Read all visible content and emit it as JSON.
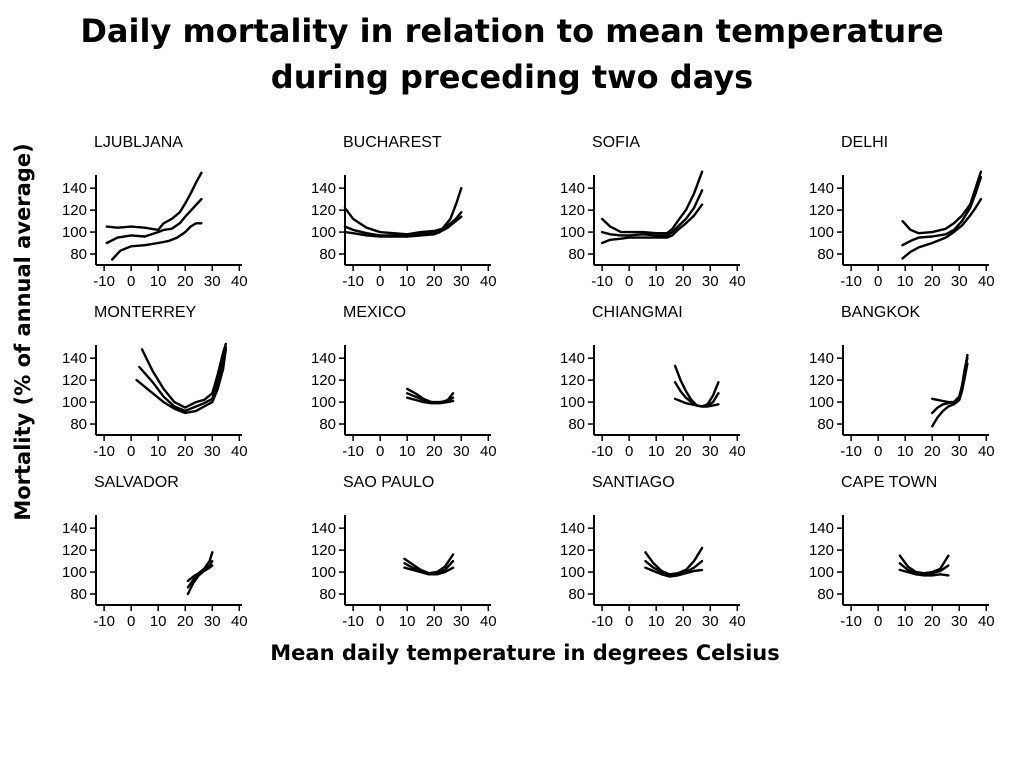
{
  "title": {
    "line1": "Daily mortality in relation to mean temperature",
    "line2": "during preceding two days"
  },
  "chart_data": {
    "type": "line",
    "title": "Daily mortality in relation to mean temperature during preceding two days",
    "xlabel": "Mean daily temperature in degrees Celsius",
    "ylabel": "Mortality (% of annual average)",
    "layout": "3x4 small multiples",
    "xlim": [
      -13,
      41
    ],
    "ylim": [
      70,
      152
    ],
    "x_ticks": [
      -10,
      0,
      10,
      20,
      30,
      40
    ],
    "y_ticks": [
      80,
      100,
      120,
      140
    ],
    "grid": false,
    "panels": [
      {
        "name": "LJUBLJANA",
        "series": [
          {
            "x": [
              -9,
              -5,
              0,
              5,
              10,
              12,
              15,
              18,
              20,
              23,
              26
            ],
            "y": [
              90,
              95,
              97,
              96,
              100,
              102,
              103,
              108,
              114,
              122,
              130
            ]
          },
          {
            "x": [
              -9,
              -5,
              0,
              5,
              10,
              12,
              15,
              18,
              20,
              22,
              24,
              26
            ],
            "y": [
              105,
              104,
              105,
              104,
              102,
              108,
              112,
              118,
              126,
              135,
              145,
              154
            ]
          },
          {
            "x": [
              -7,
              -4,
              0,
              5,
              10,
              14,
              17,
              20,
              22,
              24,
              26
            ],
            "y": [
              75,
              83,
              87,
              88,
              90,
              92,
              95,
              100,
              105,
              108,
              108
            ]
          }
        ]
      },
      {
        "name": "BUCHAREST",
        "series": [
          {
            "x": [
              -13,
              -10,
              -5,
              0,
              5,
              10,
              15,
              20,
              23,
              26,
              28,
              30
            ],
            "y": [
              122,
              112,
              104,
              100,
              99,
              98,
              100,
              101,
              103,
              112,
              125,
              140
            ]
          },
          {
            "x": [
              -13,
              -10,
              -5,
              0,
              5,
              10,
              15,
              20,
              22,
              25,
              28,
              30
            ],
            "y": [
              105,
              102,
              99,
              97,
              97,
              96,
              98,
              99,
              100,
              106,
              112,
              118
            ]
          },
          {
            "x": [
              -13,
              -10,
              -5,
              0,
              5,
              10,
              15,
              20,
              22,
              25,
              28,
              30
            ],
            "y": [
              100,
              99,
              97,
              96,
              96,
              96,
              97,
              98,
              100,
              104,
              110,
              114
            ]
          }
        ]
      },
      {
        "name": "SOFIA",
        "series": [
          {
            "x": [
              -10,
              -7,
              -3,
              0,
              5,
              10,
              14,
              16,
              18,
              21,
              24,
              27
            ],
            "y": [
              112,
              105,
              100,
              100,
              100,
              99,
              99,
              103,
              110,
              120,
              135,
              155
            ]
          },
          {
            "x": [
              -10,
              -7,
              -3,
              0,
              5,
              10,
              14,
              16,
              18,
              21,
              24,
              27
            ],
            "y": [
              100,
              98,
              97,
              97,
              98,
              97,
              97,
              100,
              105,
              112,
              122,
              138
            ]
          },
          {
            "x": [
              -10,
              -7,
              -3,
              0,
              5,
              10,
              14,
              16,
              18,
              21,
              24,
              27
            ],
            "y": [
              90,
              93,
              94,
              95,
              95,
              95,
              95,
              97,
              102,
              108,
              115,
              125
            ]
          }
        ]
      },
      {
        "name": "DELHI",
        "series": [
          {
            "x": [
              9,
              12,
              15,
              20,
              25,
              28,
              31,
              34,
              36,
              38
            ],
            "y": [
              110,
              102,
              99,
              100,
              103,
              108,
              115,
              125,
              140,
              155
            ]
          },
          {
            "x": [
              9,
              12,
              15,
              20,
              25,
              28,
              31,
              34,
              36,
              38
            ],
            "y": [
              88,
              92,
              95,
              96,
              98,
              102,
              110,
              122,
              135,
              150
            ]
          },
          {
            "x": [
              9,
              12,
              15,
              20,
              25,
              28,
              31,
              34,
              36,
              38
            ],
            "y": [
              76,
              82,
              86,
              90,
              95,
              100,
              106,
              115,
              122,
              130
            ]
          }
        ]
      },
      {
        "name": "MONTERREY",
        "series": [
          {
            "x": [
              4,
              8,
              12,
              16,
              20,
              24,
              27,
              30,
              32,
              34,
              35
            ],
            "y": [
              148,
              128,
              112,
              100,
              95,
              100,
              102,
              108,
              125,
              145,
              153
            ]
          },
          {
            "x": [
              3,
              8,
              12,
              16,
              20,
              24,
              27,
              30,
              32,
              34,
              35
            ],
            "y": [
              132,
              118,
              105,
              96,
              92,
              96,
              99,
              103,
              118,
              138,
              150
            ]
          },
          {
            "x": [
              2,
              8,
              12,
              16,
              20,
              24,
              27,
              30,
              32,
              34,
              35
            ],
            "y": [
              120,
              108,
              100,
              94,
              90,
              92,
              96,
              100,
              112,
              130,
              148
            ]
          }
        ]
      },
      {
        "name": "MEXICO",
        "series": [
          {
            "x": [
              10,
              13,
              16,
              19,
              22,
              25,
              27
            ],
            "y": [
              112,
              108,
              103,
              100,
              99,
              102,
              108
            ]
          },
          {
            "x": [
              10,
              13,
              16,
              19,
              22,
              25,
              27
            ],
            "y": [
              108,
              105,
              102,
              100,
              100,
              101,
              104
            ]
          },
          {
            "x": [
              10,
              13,
              16,
              19,
              22,
              25,
              27
            ],
            "y": [
              104,
              102,
              100,
              99,
              99,
              100,
              101
            ]
          }
        ]
      },
      {
        "name": "CHIANGMAI",
        "series": [
          {
            "x": [
              17,
              19,
              21,
              23,
              25,
              27,
              29,
              31,
              33
            ],
            "y": [
              133,
              120,
              110,
              102,
              97,
              96,
              98,
              106,
              118
            ]
          },
          {
            "x": [
              17,
              19,
              21,
              23,
              25,
              27,
              29,
              31,
              33
            ],
            "y": [
              118,
              110,
              104,
              100,
              97,
              96,
              97,
              100,
              108
            ]
          },
          {
            "x": [
              17,
              19,
              21,
              23,
              25,
              27,
              29,
              31,
              33
            ],
            "y": [
              103,
              101,
              99,
              98,
              97,
              96,
              96,
              97,
              98
            ]
          }
        ]
      },
      {
        "name": "BANGKOK",
        "series": [
          {
            "x": [
              20,
              22,
              24,
              26,
              28,
              30,
              31,
              32,
              33
            ],
            "y": [
              103,
              102,
              101,
              100,
              100,
              104,
              112,
              128,
              143
            ]
          },
          {
            "x": [
              20,
              22,
              24,
              26,
              28,
              30,
              31,
              32,
              33
            ],
            "y": [
              90,
              95,
              98,
              99,
              100,
              105,
              115,
              130,
              140
            ]
          },
          {
            "x": [
              20,
              22,
              24,
              26,
              28,
              30,
              31,
              32,
              33
            ],
            "y": [
              78,
              86,
              92,
              96,
              98,
              102,
              110,
              122,
              135
            ]
          }
        ]
      },
      {
        "name": "SALVADOR",
        "series": [
          {
            "x": [
              21,
              23,
              25,
              27,
              29,
              30
            ],
            "y": [
              92,
              96,
              99,
              103,
              110,
              118
            ]
          },
          {
            "x": [
              21,
              23,
              25,
              27,
              29,
              30
            ],
            "y": [
              86,
              93,
              99,
              102,
              106,
              110
            ]
          },
          {
            "x": [
              21,
              23,
              25,
              27,
              29,
              30
            ],
            "y": [
              80,
              90,
              97,
              101,
              104,
              106
            ]
          }
        ]
      },
      {
        "name": "SAO PAULO",
        "series": [
          {
            "x": [
              9,
              12,
              15,
              18,
              21,
              24,
              27
            ],
            "y": [
              112,
              107,
              102,
              99,
              100,
              105,
              116
            ]
          },
          {
            "x": [
              9,
              12,
              15,
              18,
              21,
              24,
              27
            ],
            "y": [
              108,
              104,
              101,
              99,
              99,
              102,
              110
            ]
          },
          {
            "x": [
              9,
              12,
              15,
              18,
              21,
              24,
              27
            ],
            "y": [
              104,
              102,
              100,
              98,
              98,
              100,
              104
            ]
          }
        ]
      },
      {
        "name": "SANTIAGO",
        "series": [
          {
            "x": [
              6,
              9,
              12,
              15,
              18,
              21,
              24,
              27
            ],
            "y": [
              118,
              108,
              101,
              98,
              99,
              102,
              110,
              122
            ]
          },
          {
            "x": [
              6,
              9,
              12,
              15,
              18,
              21,
              24,
              27
            ],
            "y": [
              110,
              104,
              100,
              97,
              98,
              100,
              104,
              110
            ]
          },
          {
            "x": [
              6,
              9,
              12,
              15,
              18,
              21,
              24,
              27
            ],
            "y": [
              104,
              101,
              98,
              96,
              97,
              99,
              101,
              102
            ]
          }
        ]
      },
      {
        "name": "CAPE TOWN",
        "series": [
          {
            "x": [
              8,
              11,
              14,
              17,
              20,
              23,
              26
            ],
            "y": [
              115,
              105,
              100,
              99,
              100,
              103,
              115
            ]
          },
          {
            "x": [
              8,
              11,
              14,
              17,
              20,
              23,
              26
            ],
            "y": [
              108,
              102,
              99,
              98,
              99,
              101,
              106
            ]
          },
          {
            "x": [
              8,
              11,
              14,
              17,
              20,
              23,
              26
            ],
            "y": [
              102,
              100,
              98,
              97,
              97,
              98,
              97
            ]
          }
        ]
      }
    ]
  }
}
